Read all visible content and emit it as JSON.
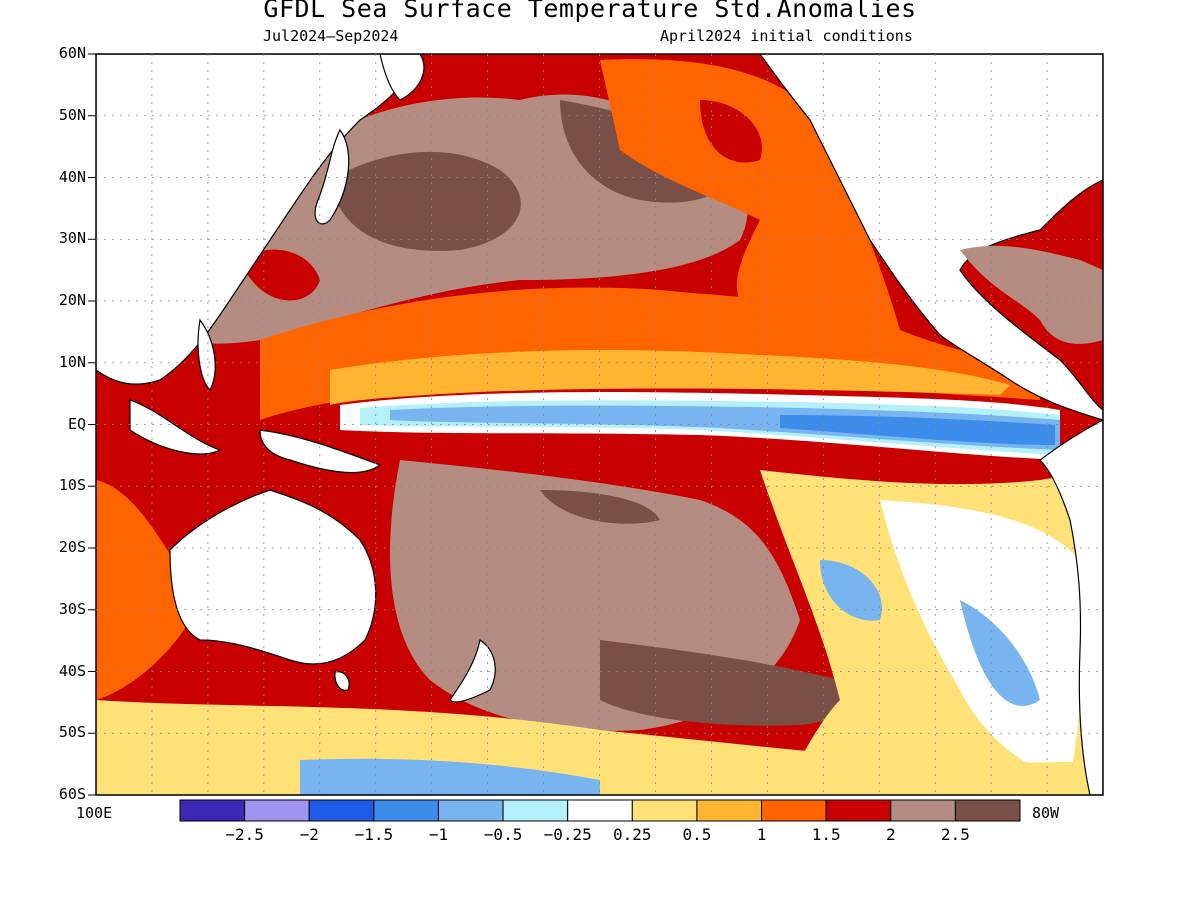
{
  "title": "GFDL Sea Surface Temperature Std.Anomalies",
  "subtitle_left": "Jul2024–Sep2024",
  "subtitle_right": "April2024 initial conditions",
  "lat_labels": [
    "60N",
    "50N",
    "40N",
    "30N",
    "20N",
    "10N",
    "EQ",
    "10S",
    "20S",
    "30S",
    "40S",
    "50S",
    "60S"
  ],
  "lon_labels": {
    "left": "100E",
    "right": "80W"
  },
  "colorbar": {
    "colors": [
      "#3c28b4",
      "#a094f0",
      "#1e5ae6",
      "#3c8ceb",
      "#78b4f0",
      "#b4f0fa",
      "#ffffff",
      "#ffe178",
      "#ffb432",
      "#ff6400",
      "#c80000",
      "#b48c82",
      "#7a5046"
    ],
    "labels": [
      "−2.5",
      "−2",
      "−1.5",
      "−1",
      "−0.5",
      "−0.25",
      "0.25",
      "0.5",
      "1",
      "1.5",
      "2",
      "2.5"
    ]
  }
}
